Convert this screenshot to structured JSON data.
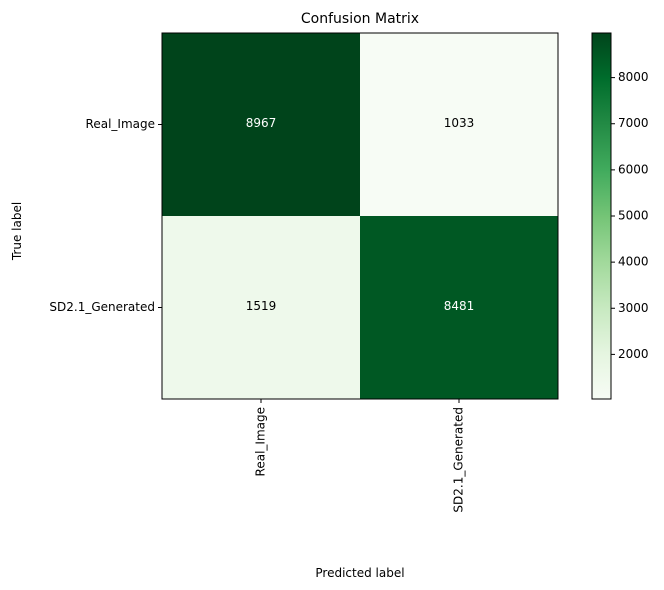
{
  "chart_data": {
    "type": "heatmap",
    "title": "Confusion Matrix",
    "xlabel": "Predicted label",
    "ylabel": "True label",
    "x_categories": [
      "Real_Image",
      "SD2.1_Generated"
    ],
    "y_categories": [
      "Real_Image",
      "SD2.1_Generated"
    ],
    "values": [
      [
        8967,
        1033
      ],
      [
        1519,
        8481
      ]
    ],
    "colormap": "Greens",
    "colorbar": {
      "ticks": [
        2000,
        3000,
        4000,
        5000,
        6000,
        7000,
        8000
      ],
      "range": [
        1033,
        8967
      ]
    },
    "text_colors": {
      "on_dark": "#ffffff",
      "on_light": "#000000"
    }
  }
}
